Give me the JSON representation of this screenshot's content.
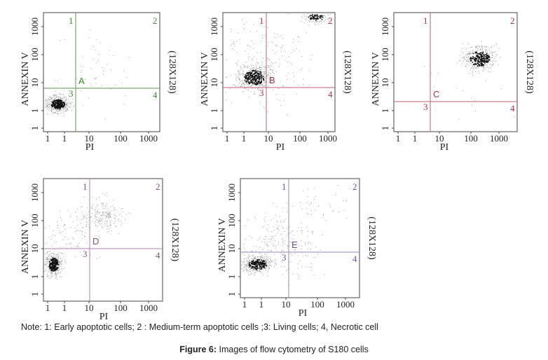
{
  "axes": {
    "y_label": "ANNEXIN V",
    "x_label": "PI",
    "side_label": "(128X128)",
    "x_ticks": [
      "1",
      "1",
      "10",
      "100",
      "1000"
    ],
    "y_ticks": [
      "1",
      "1",
      "10",
      "100",
      "1000"
    ]
  },
  "panels": [
    {
      "letter": "A",
      "quadrants": [
        "1",
        "2",
        "3",
        "4"
      ]
    },
    {
      "letter": "B",
      "quadrants": [
        "1",
        "2",
        "3",
        "4"
      ]
    },
    {
      "letter": "C",
      "quadrants": [
        "1",
        "2",
        "3",
        "4"
      ]
    },
    {
      "letter": "D",
      "quadrants": [
        "1",
        "2",
        "3",
        "4"
      ]
    },
    {
      "letter": "E",
      "quadrants": [
        "1",
        "2",
        "3",
        "4"
      ]
    }
  ],
  "note": "Note: 1: Early apoptotic cells; 2 : Medium-term apoptotic cells ;3: Living cells; 4, Necrotic cell",
  "caption": {
    "label": "Figure 6:",
    "text": "Images of flow cytometry of S180 cells"
  }
}
